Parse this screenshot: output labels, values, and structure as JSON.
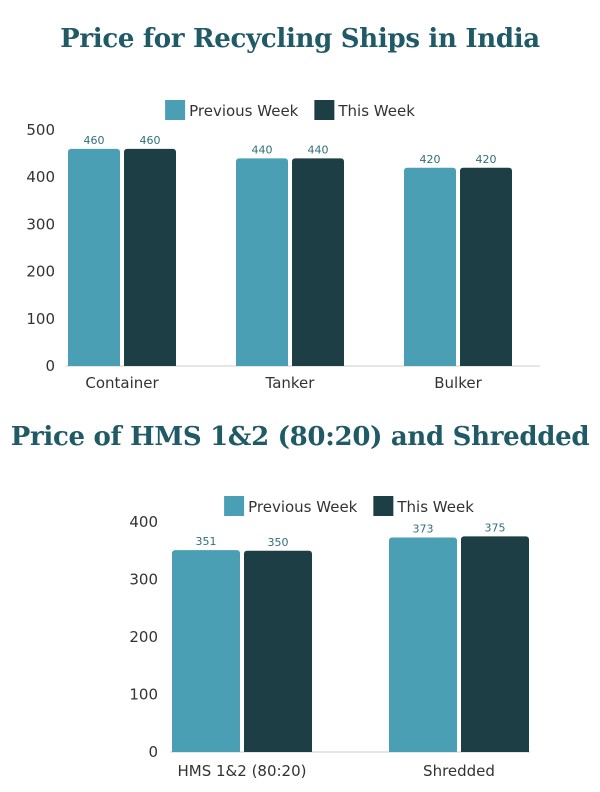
{
  "colors": {
    "previous_week": "#4a9fb5",
    "this_week": "#1e3e46",
    "title": "#1f5a66",
    "axis_line": "#cccccc",
    "data_label": "#2f6f7c"
  },
  "chart_data": [
    {
      "type": "bar",
      "title": "Price for Recycling Ships in India",
      "xlabel": "",
      "ylabel": "",
      "categories": [
        "Container",
        "Tanker",
        "Bulker"
      ],
      "series": [
        {
          "name": "Previous Week",
          "values": [
            460,
            440,
            420
          ]
        },
        {
          "name": "This Week",
          "values": [
            460,
            440,
            420
          ]
        }
      ],
      "ylim": [
        0,
        500
      ],
      "yticks": [
        0,
        100,
        200,
        300,
        400,
        500
      ],
      "legend": "top-center",
      "grid": false
    },
    {
      "type": "bar",
      "title": "Price of HMS 1&2 (80:20) and Shredded",
      "xlabel": "",
      "ylabel": "",
      "categories": [
        "HMS 1&2 (80:20)",
        "Shredded"
      ],
      "series": [
        {
          "name": "Previous Week",
          "values": [
            351,
            373
          ]
        },
        {
          "name": "This Week",
          "values": [
            350,
            375
          ]
        }
      ],
      "ylim": [
        0,
        400
      ],
      "yticks": [
        0,
        100,
        200,
        300,
        400
      ],
      "legend": "top-center",
      "grid": false
    }
  ]
}
